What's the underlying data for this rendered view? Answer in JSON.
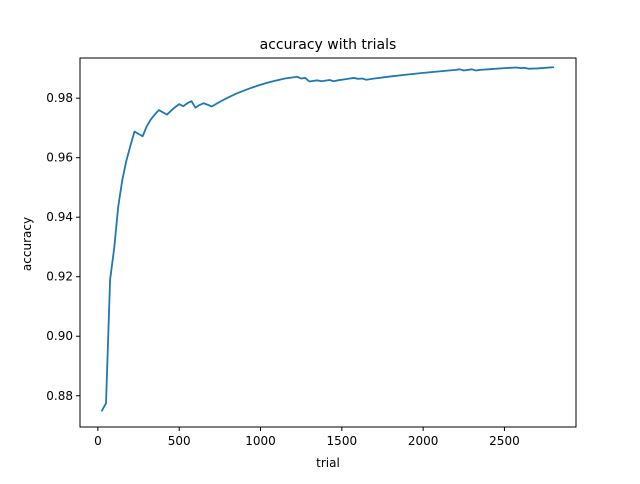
{
  "chart_data": {
    "type": "line",
    "title": "accuracy with trials",
    "xlabel": "trial",
    "ylabel": "accuracy",
    "xlim": [
      -110,
      2940
    ],
    "ylim": [
      0.8695,
      0.9935
    ],
    "xticks": [
      0,
      500,
      1000,
      1500,
      2000,
      2500
    ],
    "yticks": [
      0.88,
      0.9,
      0.92,
      0.94,
      0.96,
      0.98
    ],
    "ytick_labels": [
      "0.88",
      "0.90",
      "0.92",
      "0.94",
      "0.96",
      "0.98"
    ],
    "grid": false,
    "legend": "none",
    "line_color": "#1f77b4",
    "series": [
      {
        "x": [
          25,
          50,
          75,
          100,
          125,
          150,
          175,
          200,
          225,
          250,
          275,
          300,
          325,
          350,
          375,
          400,
          425,
          450,
          475,
          500,
          525,
          550,
          575,
          600,
          625,
          650,
          675,
          700,
          750,
          800,
          850,
          900,
          950,
          1000,
          1050,
          1100,
          1150,
          1200,
          1225,
          1250,
          1275,
          1300,
          1325,
          1350,
          1375,
          1400,
          1425,
          1450,
          1475,
          1500,
          1525,
          1550,
          1575,
          1600,
          1625,
          1650,
          1700,
          1800,
          1900,
          2000,
          2100,
          2200,
          2225,
          2250,
          2300,
          2325,
          2350,
          2400,
          2500,
          2575,
          2600,
          2625,
          2650,
          2700,
          2800
        ],
        "y": [
          0.875,
          0.8775,
          0.919,
          0.9295,
          0.9435,
          0.9525,
          0.959,
          0.964,
          0.9688,
          0.968,
          0.9672,
          0.9705,
          0.9728,
          0.9745,
          0.976,
          0.9752,
          0.9745,
          0.9758,
          0.977,
          0.978,
          0.9773,
          0.9783,
          0.979,
          0.9768,
          0.9777,
          0.9783,
          0.9778,
          0.9772,
          0.9788,
          0.9802,
          0.9815,
          0.9826,
          0.9836,
          0.9845,
          0.9853,
          0.986,
          0.9866,
          0.987,
          0.9872,
          0.9866,
          0.9868,
          0.9856,
          0.9858,
          0.986,
          0.9857,
          0.9859,
          0.9861,
          0.9857,
          0.986,
          0.9862,
          0.9864,
          0.9866,
          0.9868,
          0.9865,
          0.9866,
          0.9862,
          0.9866,
          0.9873,
          0.9879,
          0.9885,
          0.989,
          0.9895,
          0.9897,
          0.9893,
          0.9897,
          0.9893,
          0.9895,
          0.9897,
          0.9901,
          0.9903,
          0.9901,
          0.9902,
          0.9899,
          0.99,
          0.9904
        ]
      }
    ]
  }
}
